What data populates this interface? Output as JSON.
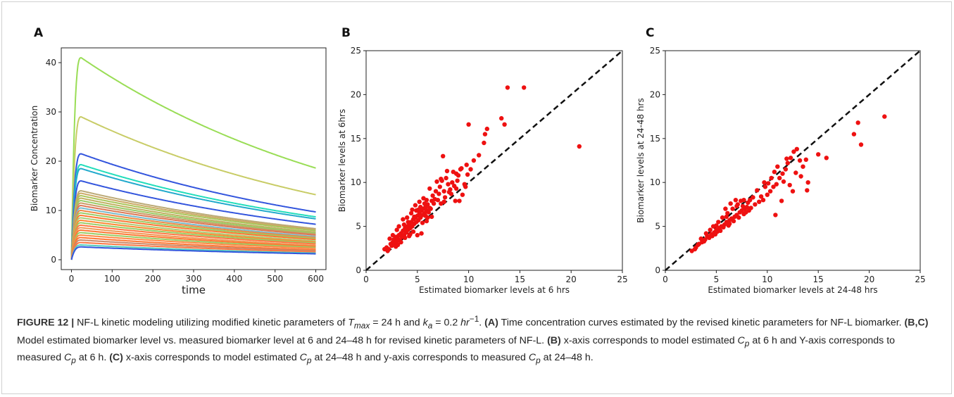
{
  "colors": {
    "scatter": "#ee1111",
    "diagonal": "#111111"
  },
  "chart_data": [
    {
      "panel": "A",
      "type": "line",
      "xlabel": "time",
      "ylabel": "Biomarker Concentration",
      "xlim": [
        -25,
        625
      ],
      "ylim": [
        -2,
        43
      ],
      "x_ticks": [
        "0",
        "100",
        "200",
        "300",
        "400",
        "500",
        "600"
      ],
      "y_ticks": [
        "0",
        "10",
        "20",
        "30",
        "40"
      ],
      "grid": false,
      "t_peak": 24,
      "series": [
        {
          "peak": 41,
          "end": 18.6,
          "color": "#99dd55"
        },
        {
          "peak": 29,
          "end": 13.2,
          "color": "#c8cc66"
        },
        {
          "peak": 21.5,
          "end": 9.7,
          "color": "#3355dd"
        },
        {
          "peak": 19.3,
          "end": 8.7,
          "color": "#22ddbb"
        },
        {
          "peak": 18.5,
          "end": 8.3,
          "color": "#22aacc"
        },
        {
          "peak": 16,
          "end": 7.2,
          "color": "#3355dd"
        },
        {
          "peak": 14,
          "end": 6.3,
          "color": "#bbaa77"
        },
        {
          "peak": 13.5,
          "end": 6.1,
          "color": "#ccaa66"
        },
        {
          "peak": 13,
          "end": 5.9,
          "color": "#a9c55a"
        },
        {
          "peak": 12.5,
          "end": 5.6,
          "color": "#c0b060"
        },
        {
          "peak": 12,
          "end": 5.4,
          "color": "#99cc66"
        },
        {
          "peak": 11.5,
          "end": 5.2,
          "color": "#cc9966"
        },
        {
          "peak": 11,
          "end": 5.0,
          "color": "#dd7755"
        },
        {
          "peak": 10.5,
          "end": 4.7,
          "color": "#77bbcc"
        },
        {
          "peak": 10,
          "end": 4.5,
          "color": "#ee8844"
        },
        {
          "peak": 9.5,
          "end": 4.3,
          "color": "#99cc66"
        },
        {
          "peak": 9,
          "end": 4.1,
          "color": "#ff7733"
        },
        {
          "peak": 8.5,
          "end": 3.8,
          "color": "#aacc77"
        },
        {
          "peak": 8,
          "end": 3.6,
          "color": "#ff8833"
        },
        {
          "peak": 7.5,
          "end": 3.4,
          "color": "#99cc66"
        },
        {
          "peak": 7,
          "end": 3.2,
          "color": "#ff7744"
        },
        {
          "peak": 6.5,
          "end": 2.9,
          "color": "#ee9955"
        },
        {
          "peak": 6,
          "end": 2.7,
          "color": "#ff7733"
        },
        {
          "peak": 5.5,
          "end": 2.5,
          "color": "#99cc66"
        },
        {
          "peak": 5,
          "end": 2.3,
          "color": "#ff8844"
        },
        {
          "peak": 4.5,
          "end": 2.0,
          "color": "#ff7733"
        },
        {
          "peak": 4,
          "end": 1.8,
          "color": "#cc8866"
        },
        {
          "peak": 3.5,
          "end": 1.6,
          "color": "#ff7744"
        },
        {
          "peak": 3.0,
          "end": 1.35,
          "color": "#55ccbb"
        },
        {
          "peak": 2.6,
          "end": 1.2,
          "color": "#3355dd"
        }
      ]
    },
    {
      "panel": "B",
      "type": "scatter",
      "xlabel": "Estimated biomarker levels at 6 hrs",
      "ylabel": "Biomarker levels at 6hrs",
      "xlim": [
        0,
        25
      ],
      "ylim": [
        0,
        25
      ],
      "x_ticks": [
        "0",
        "5",
        "10",
        "15",
        "20",
        "25"
      ],
      "y_ticks": [
        "0",
        "5",
        "10",
        "15",
        "20",
        "25"
      ],
      "grid": false,
      "reference_line": "y = x",
      "points": [
        [
          1.8,
          2.4
        ],
        [
          2.0,
          2.6
        ],
        [
          2.2,
          2.4
        ],
        [
          2.4,
          3.0
        ],
        [
          2.5,
          2.8
        ],
        [
          2.6,
          3.2
        ],
        [
          2.7,
          3.5
        ],
        [
          2.8,
          3.0
        ],
        [
          2.9,
          3.8
        ],
        [
          3.0,
          3.3
        ],
        [
          3.1,
          3.6
        ],
        [
          3.2,
          4.0
        ],
        [
          3.3,
          3.4
        ],
        [
          3.4,
          4.2
        ],
        [
          3.5,
          3.8
        ],
        [
          3.6,
          4.5
        ],
        [
          3.7,
          4.0
        ],
        [
          3.8,
          4.8
        ],
        [
          3.9,
          4.3
        ],
        [
          4.0,
          5.0
        ],
        [
          4.1,
          4.6
        ],
        [
          4.2,
          5.2
        ],
        [
          4.3,
          4.8
        ],
        [
          4.4,
          5.5
        ],
        [
          4.5,
          5.0
        ],
        [
          4.6,
          5.8
        ],
        [
          4.7,
          5.3
        ],
        [
          4.8,
          6.0
        ],
        [
          4.9,
          5.5
        ],
        [
          5.0,
          6.2
        ],
        [
          5.1,
          5.7
        ],
        [
          5.2,
          6.5
        ],
        [
          5.3,
          6.0
        ],
        [
          5.4,
          6.8
        ],
        [
          5.5,
          6.3
        ],
        [
          5.6,
          7.0
        ],
        [
          5.7,
          6.5
        ],
        [
          5.8,
          7.2
        ],
        [
          5.9,
          6.8
        ],
        [
          6.0,
          7.5
        ],
        [
          3.2,
          5.0
        ],
        [
          3.6,
          5.8
        ],
        [
          4.0,
          6.0
        ],
        [
          4.4,
          6.5
        ],
        [
          2.3,
          3.6
        ],
        [
          2.6,
          4.0
        ],
        [
          3.0,
          4.6
        ],
        [
          4.8,
          7.4
        ],
        [
          5.2,
          7.8
        ],
        [
          5.6,
          8.2
        ],
        [
          5.0,
          4.0
        ],
        [
          4.6,
          4.4
        ],
        [
          4.2,
          3.9
        ],
        [
          3.8,
          3.7
        ],
        [
          5.5,
          5.4
        ],
        [
          6.0,
          6.0
        ],
        [
          6.3,
          7.0
        ],
        [
          6.5,
          8.5
        ],
        [
          6.8,
          9.0
        ],
        [
          7.0,
          8.0
        ],
        [
          7.2,
          9.5
        ],
        [
          7.4,
          10.2
        ],
        [
          7.6,
          9.0
        ],
        [
          7.8,
          10.5
        ],
        [
          8.0,
          9.8
        ],
        [
          8.2,
          9.2
        ],
        [
          8.4,
          10.0
        ],
        [
          8.6,
          9.6
        ],
        [
          8.8,
          11.0
        ],
        [
          9.0,
          10.8
        ],
        [
          9.2,
          11.5
        ],
        [
          9.4,
          8.6
        ],
        [
          9.6,
          9.8
        ],
        [
          9.8,
          12.0
        ],
        [
          6.6,
          7.6
        ],
        [
          7.1,
          8.7
        ],
        [
          7.7,
          8.3
        ],
        [
          8.3,
          8.7
        ],
        [
          8.7,
          7.9
        ],
        [
          9.1,
          7.9
        ],
        [
          5.9,
          8.0
        ],
        [
          6.2,
          9.3
        ],
        [
          7.5,
          13.0
        ],
        [
          10.0,
          16.6
        ],
        [
          11.6,
          15.5
        ],
        [
          11.8,
          16.1
        ],
        [
          11.5,
          14.5
        ],
        [
          13.2,
          17.3
        ],
        [
          13.5,
          16.6
        ],
        [
          13.8,
          20.8
        ],
        [
          15.4,
          20.8
        ],
        [
          20.8,
          14.1
        ],
        [
          10.5,
          12.5
        ],
        [
          11.0,
          13.1
        ],
        [
          10.2,
          11.5
        ],
        [
          4.3,
          4.1
        ],
        [
          3.4,
          3.2
        ],
        [
          2.9,
          2.7
        ],
        [
          5.8,
          6.2
        ],
        [
          6.1,
          6.6
        ],
        [
          7.3,
          7.6
        ],
        [
          4.9,
          6.8
        ],
        [
          5.3,
          7.2
        ],
        [
          6.4,
          7.9
        ],
        [
          8.5,
          11.2
        ],
        [
          9.3,
          11.6
        ],
        [
          7.9,
          11.3
        ],
        [
          4.1,
          5.5
        ],
        [
          3.7,
          5.2
        ],
        [
          4.5,
          6.9
        ],
        [
          5.7,
          7.6
        ],
        [
          6.9,
          10.1
        ],
        [
          7.3,
          10.4
        ],
        [
          8.1,
          8.9
        ],
        [
          8.9,
          10.2
        ],
        [
          9.7,
          9.5
        ],
        [
          5.4,
          4.2
        ],
        [
          5.9,
          5.6
        ],
        [
          6.4,
          6.1
        ],
        [
          2.1,
          2.2
        ],
        [
          3.1,
          2.9
        ],
        [
          3.9,
          4.6
        ],
        [
          4.7,
          6.1
        ],
        [
          5.1,
          6.9
        ],
        [
          6.2,
          7.1
        ],
        [
          6.7,
          8.1
        ],
        [
          7.6,
          7.8
        ],
        [
          8.8,
          9.3
        ],
        [
          9.9,
          10.9
        ]
      ]
    },
    {
      "panel": "C",
      "type": "scatter",
      "xlabel": "Estimated biomarker levels at 24-48 hrs",
      "ylabel": "Biomarker levels at 24-48 hrs",
      "xlim": [
        0,
        25
      ],
      "ylim": [
        0,
        25
      ],
      "x_ticks": [
        "0",
        "5",
        "10",
        "15",
        "20",
        "25"
      ],
      "y_ticks": [
        "0",
        "5",
        "10",
        "15",
        "20",
        "25"
      ],
      "grid": false,
      "reference_line": "y = x",
      "points": [
        [
          2.6,
          2.2
        ],
        [
          3.0,
          2.6
        ],
        [
          3.3,
          3.0
        ],
        [
          3.6,
          3.2
        ],
        [
          3.9,
          3.5
        ],
        [
          4.2,
          3.8
        ],
        [
          4.5,
          4.1
        ],
        [
          4.8,
          4.3
        ],
        [
          5.0,
          4.6
        ],
        [
          5.3,
          4.8
        ],
        [
          5.5,
          5.0
        ],
        [
          5.8,
          5.2
        ],
        [
          6.0,
          5.5
        ],
        [
          6.3,
          5.7
        ],
        [
          6.5,
          5.9
        ],
        [
          6.8,
          6.1
        ],
        [
          7.0,
          6.3
        ],
        [
          7.3,
          6.6
        ],
        [
          7.5,
          6.8
        ],
        [
          7.8,
          7.0
        ],
        [
          3.5,
          3.6
        ],
        [
          4.0,
          4.2
        ],
        [
          4.4,
          4.6
        ],
        [
          4.7,
          5.0
        ],
        [
          5.2,
          5.5
        ],
        [
          5.6,
          6.0
        ],
        [
          6.1,
          6.5
        ],
        [
          6.6,
          7.0
        ],
        [
          7.1,
          7.5
        ],
        [
          7.6,
          7.3
        ],
        [
          4.6,
          3.9
        ],
        [
          5.1,
          4.4
        ],
        [
          5.7,
          4.9
        ],
        [
          6.2,
          5.1
        ],
        [
          6.7,
          5.6
        ],
        [
          7.2,
          6.0
        ],
        [
          7.7,
          6.4
        ],
        [
          8.2,
          6.8
        ],
        [
          3.8,
          3.3
        ],
        [
          4.3,
          3.7
        ],
        [
          5.9,
          7.0
        ],
        [
          6.4,
          7.6
        ],
        [
          6.9,
          8.0
        ],
        [
          7.4,
          7.9
        ],
        [
          8.0,
          7.2
        ],
        [
          8.4,
          7.1
        ],
        [
          8.8,
          7.5
        ],
        [
          9.2,
          7.8
        ],
        [
          9.6,
          8.0
        ],
        [
          10.0,
          8.6
        ],
        [
          10.3,
          9.0
        ],
        [
          10.6,
          9.5
        ],
        [
          10.9,
          9.8
        ],
        [
          11.2,
          10.5
        ],
        [
          11.5,
          11.0
        ],
        [
          11.8,
          11.5
        ],
        [
          12.0,
          12.2
        ],
        [
          12.3,
          12.8
        ],
        [
          12.6,
          13.5
        ],
        [
          12.9,
          13.8
        ],
        [
          13.2,
          12.5
        ],
        [
          13.5,
          11.8
        ],
        [
          13.8,
          12.6
        ],
        [
          14.0,
          10.0
        ],
        [
          13.9,
          9.1
        ],
        [
          10.8,
          6.3
        ],
        [
          11.4,
          7.9
        ],
        [
          12.2,
          9.7
        ],
        [
          11.0,
          11.8
        ],
        [
          9.8,
          9.5
        ],
        [
          10.4,
          10.5
        ],
        [
          12.8,
          11.1
        ],
        [
          15.0,
          13.2
        ],
        [
          15.8,
          12.8
        ],
        [
          18.5,
          15.5
        ],
        [
          18.9,
          16.8
        ],
        [
          19.2,
          14.3
        ],
        [
          21.5,
          17.5
        ],
        [
          8.6,
          8.3
        ],
        [
          9.0,
          9.1
        ],
        [
          7.9,
          6.6
        ],
        [
          6.3,
          5.3
        ],
        [
          5.4,
          4.5
        ],
        [
          4.9,
          4.1
        ],
        [
          3.2,
          2.9
        ],
        [
          2.9,
          2.4
        ],
        [
          8.1,
          7.7
        ],
        [
          9.4,
          8.4
        ],
        [
          10.1,
          9.9
        ],
        [
          11.6,
          10.1
        ],
        [
          12.5,
          9.0
        ],
        [
          13.3,
          10.7
        ],
        [
          6.0,
          6.1
        ],
        [
          5.0,
          5.1
        ],
        [
          4.1,
          3.9
        ],
        [
          3.7,
          3.4
        ],
        [
          7.0,
          7.3
        ],
        [
          7.7,
          8.0
        ],
        [
          8.3,
          8.0
        ],
        [
          9.7,
          10.0
        ],
        [
          10.7,
          11.2
        ],
        [
          11.9,
          12.7
        ]
      ]
    }
  ],
  "caption": {
    "label": "FIGURE 12 |",
    "line1_a": " NF-L kinetic modeling utilizing modified kinetic parameters of ",
    "tmax_var": "T",
    "tmax_sub": "max",
    "line1_b": " = 24 h and ",
    "ka_var": "k",
    "ka_sub": "a",
    "line1_c": " = 0.2 ",
    "hr_unit": "hr",
    "hr_exp": "−1",
    "line1_d": ". ",
    "ref_a": "(A)",
    "text_a": " Time concentration curves estimated by the revised kinetic parameters for NF-L biomarker. ",
    "ref_bc": "(B,C)",
    "text_bc": " Model estimated biomarker level vs. measured biomarker level at 6 and 24–48 h for revised kinetic parameters of NF-L. ",
    "ref_b": "(B)",
    "text_b1": " x-axis corresponds to model estimated ",
    "cp_var": "C",
    "cp_sub": "p",
    "text_b2": " at 6 h and Y-axis corresponds to measured ",
    "text_b3": " at 6 h. ",
    "ref_c": "(C)",
    "text_c1": " x-axis corresponds to model estimated ",
    "text_c2": " at 24–48 h and y-axis corresponds to measured ",
    "text_c3": " at 24–48 h."
  }
}
